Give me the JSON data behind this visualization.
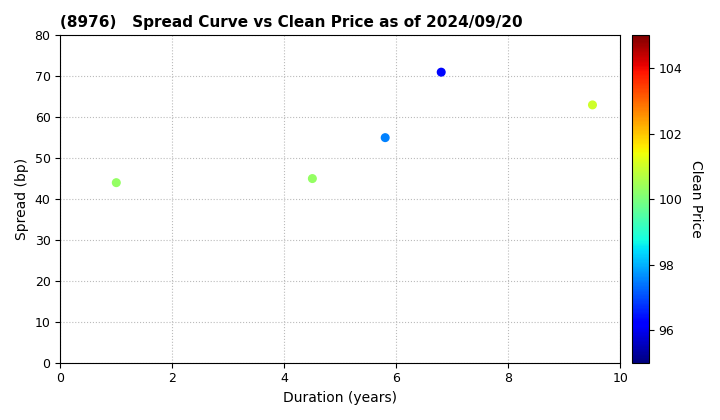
{
  "title": "(8976)   Spread Curve vs Clean Price as of 2024/09/20",
  "xlabel": "Duration (years)",
  "ylabel": "Spread (bp)",
  "colorbar_label": "Clean Price",
  "points": [
    {
      "duration": 1.0,
      "spread": 44,
      "price": 100.3
    },
    {
      "duration": 4.5,
      "spread": 45,
      "price": 100.3
    },
    {
      "duration": 5.8,
      "spread": 55,
      "price": 97.5
    },
    {
      "duration": 6.8,
      "spread": 71,
      "price": 96.3
    },
    {
      "duration": 9.5,
      "spread": 63,
      "price": 101.0
    }
  ],
  "xlim": [
    0,
    10
  ],
  "ylim": [
    0,
    80
  ],
  "cmap": "jet",
  "clim": [
    95,
    105
  ],
  "colorbar_ticks": [
    96,
    98,
    100,
    102,
    104
  ],
  "marker_size": 30,
  "grid_color": "#bbbbbb",
  "bg_color": "#ffffff",
  "title_fontsize": 11,
  "label_fontsize": 10,
  "tick_fontsize": 9
}
